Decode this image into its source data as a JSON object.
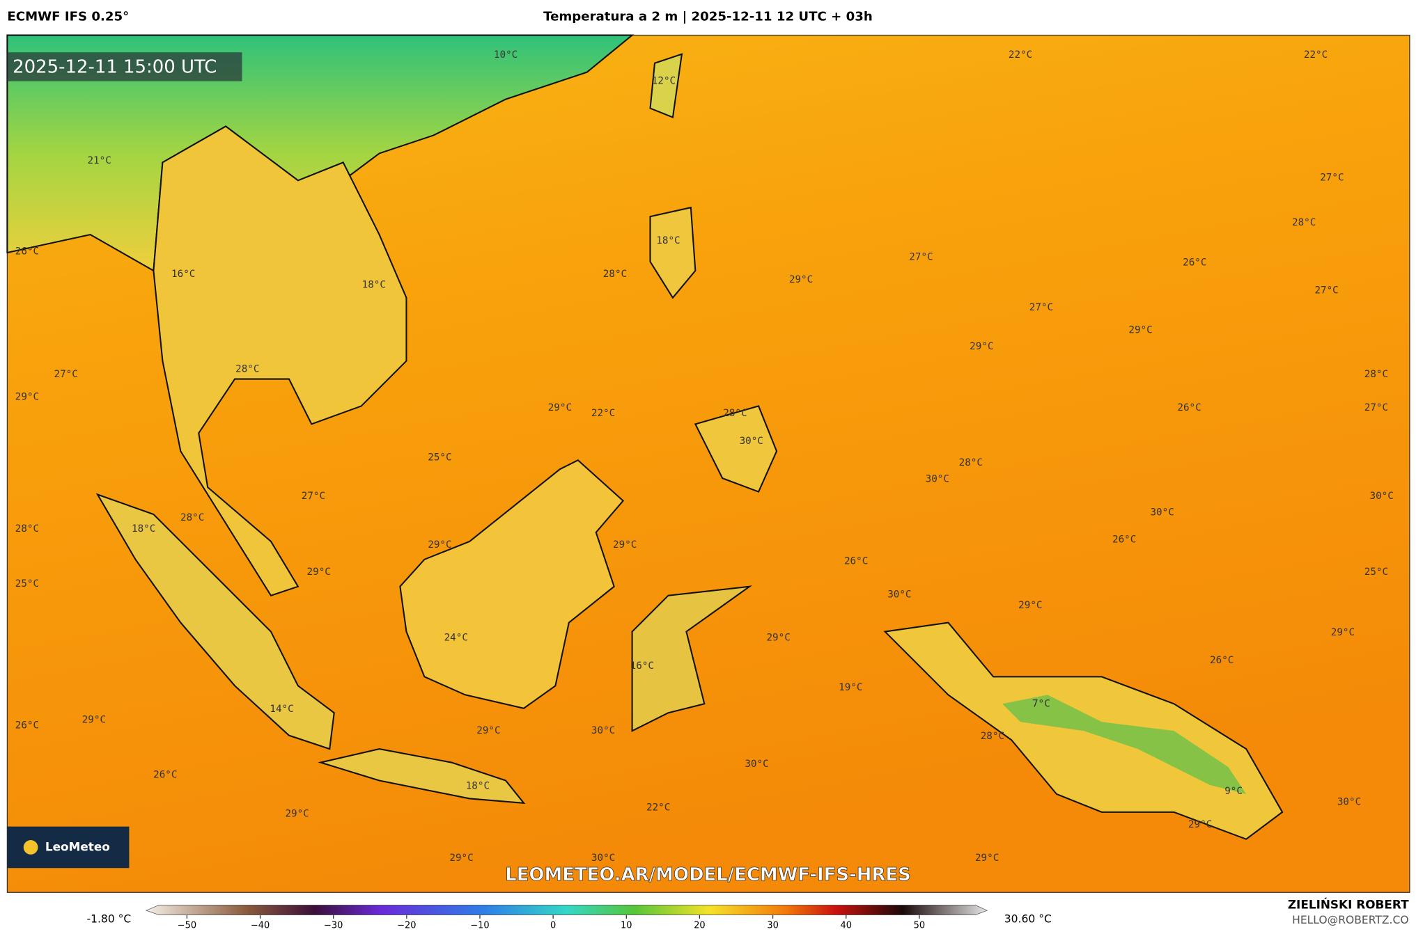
{
  "header": {
    "model": "ECMWF IFS 0.25°",
    "title": "Temperatura a 2 m | 2025-12-11 12 UTC + 03h"
  },
  "map": {
    "timestamp": "2025-12-11 15:00 UTC",
    "watermark": "LEOMETEO.AR/MODEL/ECMWF-IFS-HRES",
    "labels": [
      "10°C",
      "22°C",
      "22°C",
      "12°C",
      "21°C",
      "27°C",
      "28°C",
      "18°C",
      "26°C",
      "27°C",
      "26°C",
      "16°C",
      "28°C",
      "29°C",
      "18°C",
      "27°C",
      "27°C",
      "29°C",
      "29°C",
      "28°C",
      "27°C",
      "28°C",
      "29°C",
      "29°C",
      "22°C",
      "26°C",
      "27°C",
      "28°C",
      "30°C",
      "25°C",
      "28°C",
      "30°C",
      "27°C",
      "30°C",
      "30°C",
      "18°C",
      "28°C",
      "28°C",
      "26°C",
      "29°C",
      "29°C",
      "26°C",
      "29°C",
      "25°C",
      "25°C",
      "30°C",
      "29°C",
      "29°C",
      "24°C",
      "29°C",
      "26°C",
      "16°C",
      "19°C",
      "7°C",
      "14°C",
      "26°C",
      "29°C",
      "29°C",
      "30°C",
      "28°C",
      "30°C",
      "26°C",
      "18°C",
      "9°C",
      "22°C",
      "30°C",
      "29°C",
      "29°C",
      "29°C",
      "30°C",
      "29°C"
    ]
  },
  "logo": {
    "text": "LeoMeteo"
  },
  "colorbar": {
    "min_label": "-1.80 °C",
    "max_label": "30.60 °C",
    "ticks": [
      "−50",
      "−40",
      "−30",
      "−20",
      "−10",
      "0",
      "10",
      "20",
      "30",
      "40",
      "50"
    ]
  },
  "credit": {
    "name": "ZIELIŃSKI ROBERT",
    "email": "HELLO@ROBERTZ.CO"
  }
}
